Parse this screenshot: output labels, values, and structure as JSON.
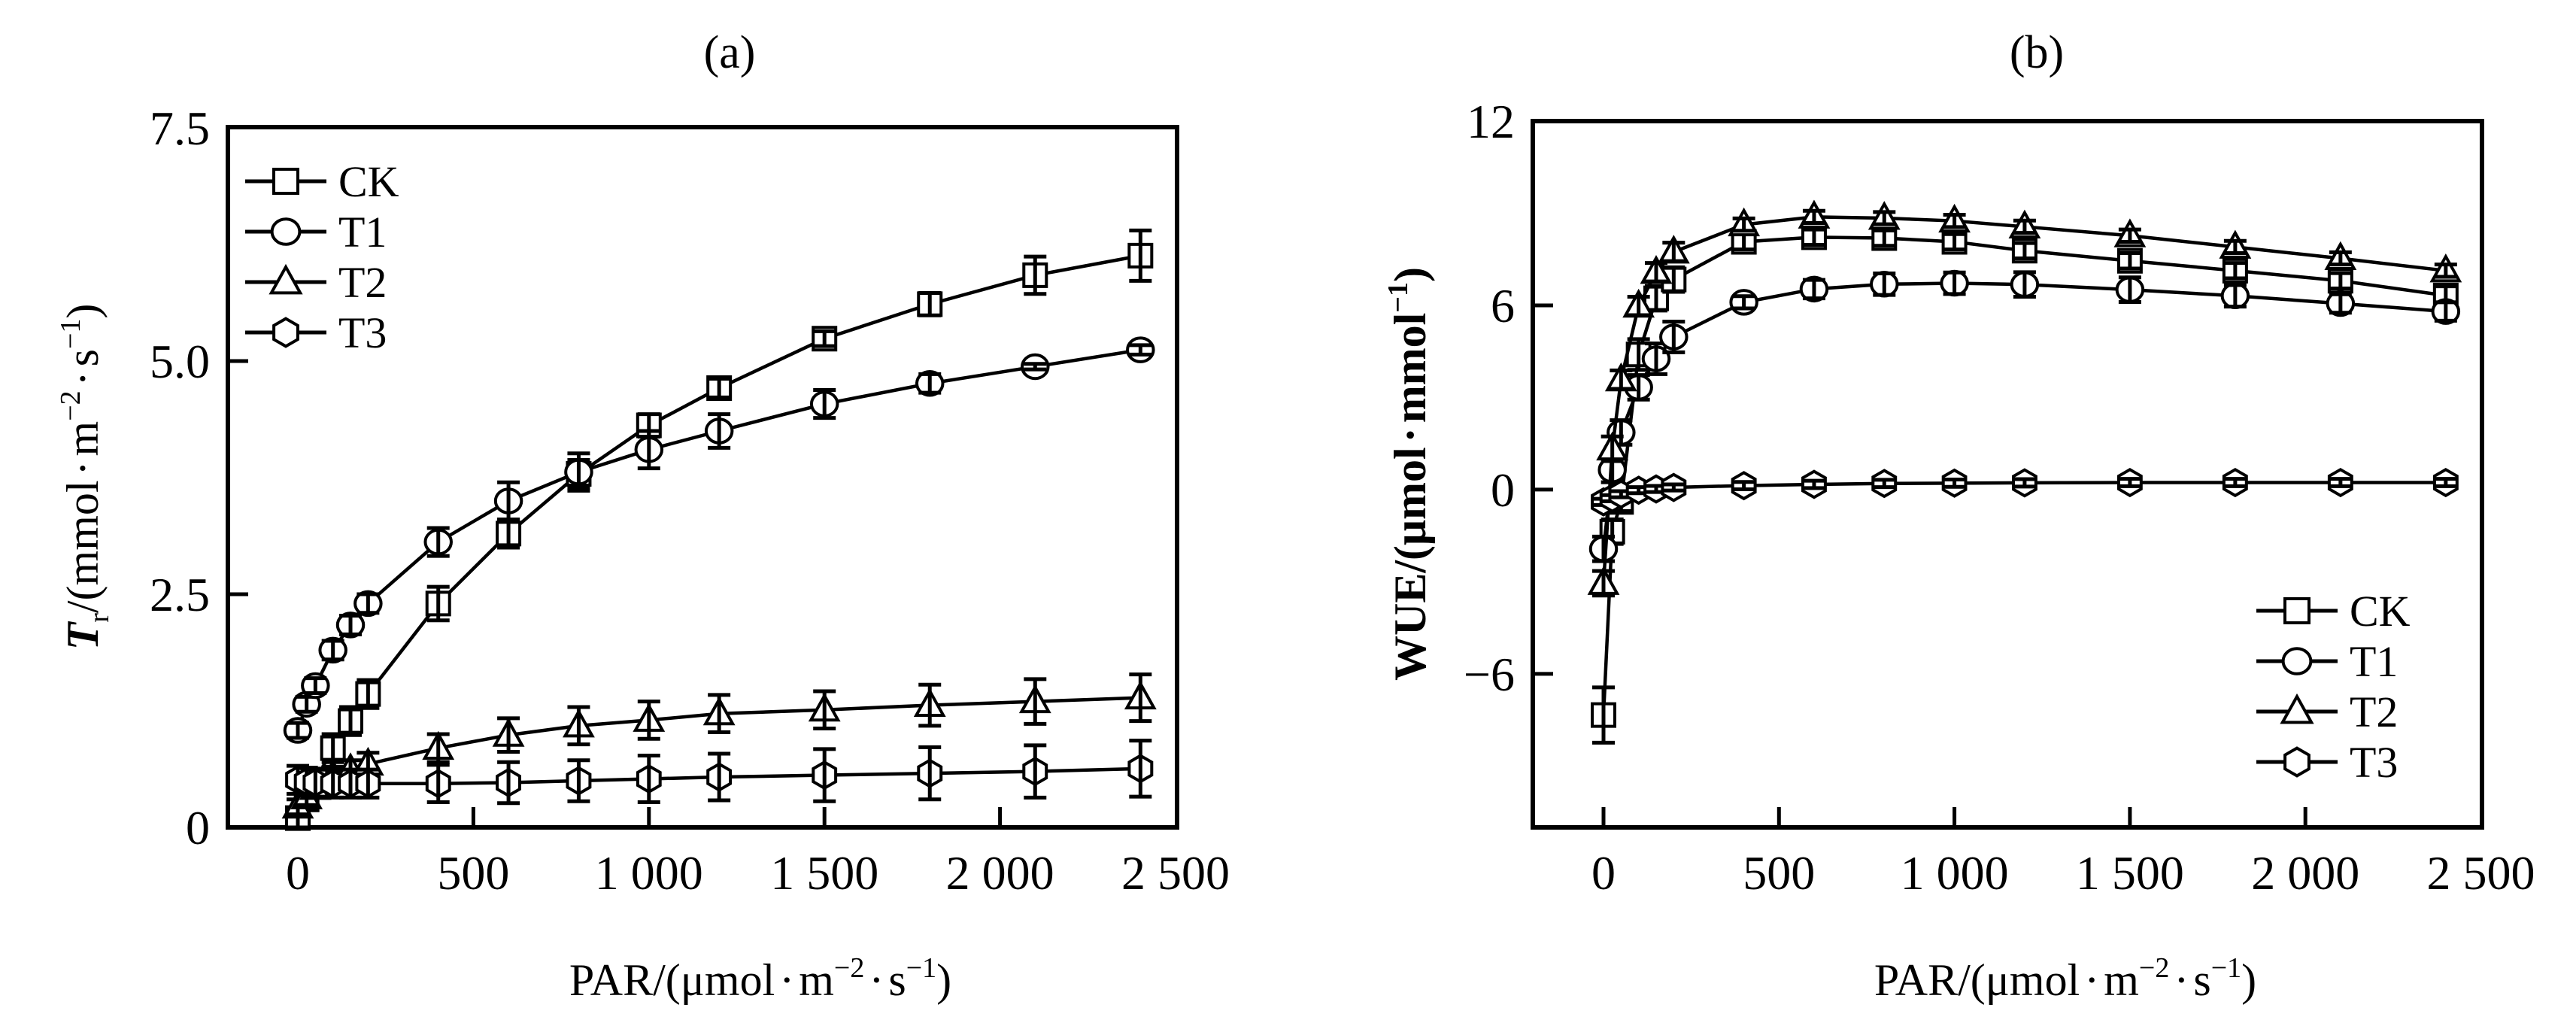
{
  "figure": {
    "panels": [
      "(a)",
      "(b)"
    ]
  },
  "colors": {
    "ink": "#000000",
    "background": "#ffffff"
  },
  "chart_data": [
    {
      "type": "line",
      "panel": "(a)",
      "title": "(a)",
      "xlabel": "PAR/(μmol·m⁻²·s⁻¹)",
      "xlabel_parts": {
        "main": "PAR/(μmol",
        "dot1": "·",
        "m": "m",
        "sup1": "−2",
        "dot2": "·",
        "s": "s",
        "sup2": "−1",
        "close": ")"
      },
      "ylabel": "Tr/(mmol·m⁻²·s⁻¹)",
      "ylabel_parts": {
        "T": "T",
        "sub": "r",
        "rest": "/(mmol",
        "dot1": "·",
        "m": "m",
        "sup1": "−2",
        "dot2": "·",
        "s": "s",
        "sup2": "−1",
        "close": ")"
      },
      "xlim": [
        -200,
        2500
      ],
      "ylim": [
        0,
        7.5
      ],
      "xticks": [
        0,
        500,
        1000,
        1500,
        2000,
        2500
      ],
      "xtick_labels": [
        "0",
        "500",
        "1 000",
        "1 500",
        "2 000",
        "2 500"
      ],
      "yticks": [
        0,
        2.5,
        5.0,
        7.5
      ],
      "ytick_labels": [
        "0",
        "2.5",
        "5.0",
        "7.5"
      ],
      "grid": false,
      "legend_position": "top-left",
      "x": [
        0,
        25,
        50,
        100,
        150,
        200,
        400,
        600,
        800,
        1000,
        1200,
        1500,
        1800,
        2100,
        2400
      ],
      "series": [
        {
          "name": "CK",
          "marker": "square",
          "values": [
            0.1,
            0.3,
            0.5,
            0.85,
            1.14,
            1.43,
            2.4,
            3.15,
            3.79,
            4.31,
            4.71,
            5.24,
            5.61,
            5.92,
            6.13
          ],
          "errors": [
            0.1,
            0.1,
            0.12,
            0.15,
            0.15,
            0.15,
            0.18,
            0.15,
            0.15,
            0.12,
            0.1,
            0.08,
            0.12,
            0.2,
            0.27
          ]
        },
        {
          "name": "T1",
          "marker": "circle",
          "values": [
            1.04,
            1.32,
            1.52,
            1.9,
            2.17,
            2.4,
            3.06,
            3.5,
            3.81,
            4.05,
            4.25,
            4.54,
            4.76,
            4.94,
            5.12
          ],
          "errors": [
            0.08,
            0.08,
            0.08,
            0.1,
            0.1,
            0.1,
            0.15,
            0.2,
            0.2,
            0.2,
            0.18,
            0.15,
            0.1,
            0.03,
            0.05
          ]
        },
        {
          "name": "T2",
          "marker": "triangle",
          "values": [
            0.22,
            0.32,
            0.42,
            0.55,
            0.62,
            0.68,
            0.85,
            0.99,
            1.09,
            1.15,
            1.22,
            1.26,
            1.31,
            1.35,
            1.39
          ],
          "errors": [
            0.08,
            0.08,
            0.1,
            0.1,
            0.1,
            0.12,
            0.15,
            0.18,
            0.2,
            0.2,
            0.2,
            0.2,
            0.22,
            0.24,
            0.25
          ]
        },
        {
          "name": "T3",
          "marker": "hexagon",
          "values": [
            0.51,
            0.49,
            0.48,
            0.47,
            0.47,
            0.47,
            0.47,
            0.48,
            0.5,
            0.52,
            0.54,
            0.56,
            0.58,
            0.6,
            0.63
          ],
          "errors": [
            0.15,
            0.15,
            0.15,
            0.15,
            0.15,
            0.15,
            0.2,
            0.22,
            0.22,
            0.25,
            0.25,
            0.28,
            0.28,
            0.28,
            0.3
          ]
        }
      ]
    },
    {
      "type": "line",
      "panel": "(b)",
      "title": "(b)",
      "xlabel": "PAR/(μmol·m⁻²·s⁻¹)",
      "xlabel_parts": {
        "main": "PAR/(μmol",
        "dot1": "·",
        "m": "m",
        "sup1": "−2",
        "dot2": "·",
        "s": "s",
        "sup2": "−1",
        "close": ")"
      },
      "ylabel": "WUE/(μmol·mmol⁻¹)",
      "ylabel_parts": {
        "rest": "WUE/(μmol",
        "dot1": "·",
        "m": "mmol",
        "sup1": "−1",
        "close": ")"
      },
      "xlim": [
        -200,
        2500
      ],
      "ylim": [
        -11,
        12
      ],
      "xticks": [
        0,
        500,
        1000,
        1500,
        2000,
        2500
      ],
      "xtick_labels": [
        "0",
        "500",
        "1 000",
        "1 500",
        "2 000",
        "2 500"
      ],
      "yticks": [
        -6,
        0,
        6,
        12
      ],
      "ytick_labels": [
        "−6",
        "0",
        "6",
        "12"
      ],
      "grid": false,
      "legend_position": "bottom-right",
      "x": [
        0,
        25,
        50,
        100,
        150,
        200,
        400,
        600,
        800,
        1000,
        1200,
        1500,
        1800,
        2100,
        2400
      ],
      "series": [
        {
          "name": "CK",
          "marker": "square",
          "values": [
            -7.34,
            -1.37,
            -0.4,
            4.4,
            6.23,
            6.84,
            8.07,
            8.22,
            8.19,
            8.07,
            7.78,
            7.45,
            7.13,
            6.8,
            6.32
          ],
          "errors": [
            0.9,
            0.4,
            0.3,
            0.5,
            0.4,
            0.4,
            0.25,
            0.25,
            0.25,
            0.25,
            0.25,
            0.25,
            0.25,
            0.25,
            0.3
          ]
        },
        {
          "name": "T1",
          "marker": "circle",
          "values": [
            -1.93,
            0.64,
            1.86,
            3.33,
            4.26,
            4.97,
            6.1,
            6.53,
            6.69,
            6.72,
            6.68,
            6.51,
            6.31,
            6.06,
            5.8
          ],
          "errors": [
            0.4,
            0.4,
            0.4,
            0.4,
            0.5,
            0.5,
            0.2,
            0.3,
            0.35,
            0.35,
            0.4,
            0.4,
            0.35,
            0.3,
            0.3
          ]
        },
        {
          "name": "T2",
          "marker": "triangle",
          "values": [
            -3.05,
            1.33,
            3.58,
            5.98,
            7.08,
            7.74,
            8.63,
            8.88,
            8.84,
            8.75,
            8.56,
            8.27,
            7.9,
            7.53,
            7.13
          ],
          "errors": [
            0.4,
            0.4,
            0.3,
            0.3,
            0.3,
            0.3,
            0.2,
            0.2,
            0.2,
            0.2,
            0.2,
            0.2,
            0.2,
            0.2,
            0.2
          ]
        },
        {
          "name": "T3",
          "marker": "hexagon",
          "values": [
            -0.4,
            -0.28,
            -0.15,
            -0.02,
            0.02,
            0.07,
            0.13,
            0.17,
            0.2,
            0.21,
            0.22,
            0.23,
            0.23,
            0.23,
            0.23
          ],
          "errors": [
            0.1,
            0.1,
            0.1,
            0.1,
            0.1,
            0.1,
            0.12,
            0.12,
            0.12,
            0.12,
            0.12,
            0.12,
            0.12,
            0.12,
            0.12
          ]
        }
      ]
    }
  ]
}
